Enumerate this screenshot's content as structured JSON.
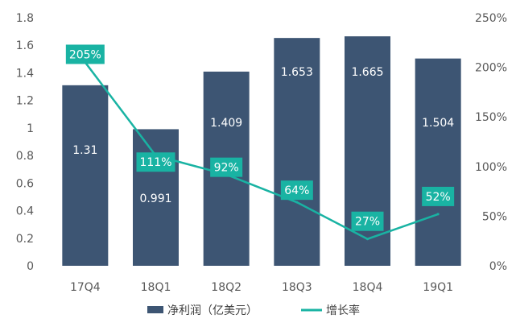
{
  "colors": {
    "bar": "#3d5573",
    "line": "#19b3a3",
    "growth_label_bg": "#19b3a3",
    "axis_text": "#595959",
    "grid": "#ffffff"
  },
  "legend": {
    "bar_label": "净利润（亿美元）",
    "line_label": "增长率"
  },
  "chart_data": {
    "type": "bar",
    "categories": [
      "17Q4",
      "18Q1",
      "18Q2",
      "18Q3",
      "18Q4",
      "19Q1"
    ],
    "series": [
      {
        "name": "净利润（亿美元）",
        "type": "bar",
        "axis": "left",
        "values": [
          1.31,
          0.991,
          1.409,
          1.653,
          1.665,
          1.504
        ],
        "labels": [
          "1.31",
          "0.991",
          "1.409",
          "1.653",
          "1.665",
          "1.504"
        ]
      },
      {
        "name": "增长率",
        "type": "line",
        "axis": "right",
        "values": [
          205,
          111,
          92,
          64,
          27,
          52
        ],
        "labels": [
          "205%",
          "111%",
          "92%",
          "64%",
          "27%",
          "52%"
        ]
      }
    ],
    "y_left": {
      "range": [
        0,
        1.8
      ],
      "ticks": [
        "0",
        "0.2",
        "0.4",
        "0.6",
        "0.8",
        "1",
        "1.2",
        "1.4",
        "1.6",
        "1.8"
      ]
    },
    "y_right": {
      "range": [
        0,
        250
      ],
      "ticks": [
        "0%",
        "50%",
        "100%",
        "150%",
        "200%",
        "250%"
      ]
    },
    "legend_position": "bottom",
    "grid": false
  }
}
